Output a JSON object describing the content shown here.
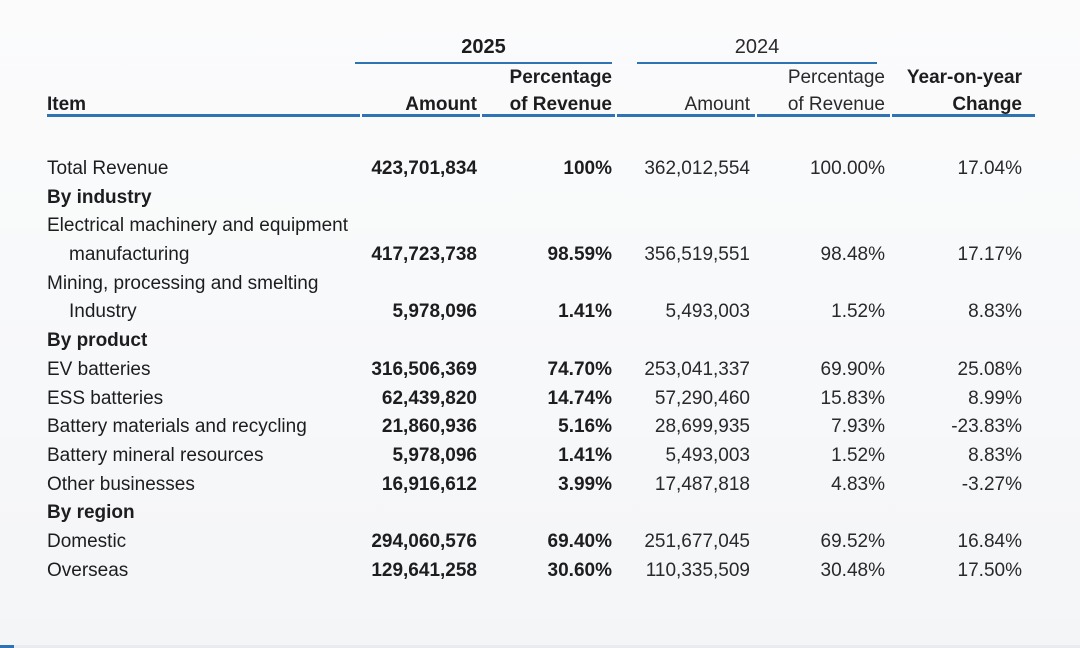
{
  "page": {
    "accent_blue": "#2e74b5",
    "text_color": "#1d1d1f",
    "background": "#f8f9fa"
  },
  "header": {
    "item_label": "Item",
    "groups": [
      {
        "year": "2025",
        "amount_label": "Amount",
        "pct_label": "Percentage\nof Revenue"
      },
      {
        "year": "2024",
        "amount_label": "Amount",
        "pct_label": "Percentage\nof Revenue"
      }
    ],
    "yoy_label": "Year-on-year\nChange"
  },
  "table": {
    "rows": [
      {
        "label": "Total Revenue",
        "a25": "423,701,834",
        "p25": "100%",
        "a24": "362,012,554",
        "p24": "100.00%",
        "yoy": "17.04%"
      },
      {
        "label": "By industry",
        "section": true,
        "a25": "",
        "p25": "",
        "a24": "",
        "p24": "",
        "yoy": ""
      },
      {
        "label": "Electrical machinery and equipment",
        "a25": "",
        "p25": "",
        "a24": "",
        "p24": "",
        "yoy": ""
      },
      {
        "label": "manufacturing",
        "indent": true,
        "a25": "417,723,738",
        "p25": "98.59%",
        "a24": "356,519,551",
        "p24": "98.48%",
        "yoy": "17.17%"
      },
      {
        "label": "Mining, processing and smelting",
        "a25": "",
        "p25": "",
        "a24": "",
        "p24": "",
        "yoy": ""
      },
      {
        "label": "Industry",
        "indent": true,
        "a25": "5,978,096",
        "p25": "1.41%",
        "a24": "5,493,003",
        "p24": "1.52%",
        "yoy": "8.83%"
      },
      {
        "label": "By product",
        "section": true,
        "a25": "",
        "p25": "",
        "a24": "",
        "p24": "",
        "yoy": ""
      },
      {
        "label": "EV batteries",
        "a25": "316,506,369",
        "p25": "74.70%",
        "a24": "253,041,337",
        "p24": "69.90%",
        "yoy": "25.08%"
      },
      {
        "label": "ESS batteries",
        "a25": "62,439,820",
        "p25": "14.74%",
        "a24": "57,290,460",
        "p24": "15.83%",
        "yoy": "8.99%"
      },
      {
        "label": "Battery materials and recycling",
        "a25": "21,860,936",
        "p25": "5.16%",
        "a24": "28,699,935",
        "p24": "7.93%",
        "yoy": "-23.83%"
      },
      {
        "label": "Battery mineral resources",
        "a25": "5,978,096",
        "p25": "1.41%",
        "a24": "5,493,003",
        "p24": "1.52%",
        "yoy": "8.83%"
      },
      {
        "label": "Other businesses",
        "a25": "16,916,612",
        "p25": "3.99%",
        "a24": "17,487,818",
        "p24": "4.83%",
        "yoy": "-3.27%"
      },
      {
        "label": "By region",
        "section": true,
        "a25": "",
        "p25": "",
        "a24": "",
        "p24": "",
        "yoy": ""
      },
      {
        "label": "Domestic",
        "a25": "294,060,576",
        "p25": "69.40%",
        "a24": "251,677,045",
        "p24": "69.52%",
        "yoy": "16.84%"
      },
      {
        "label": "Overseas",
        "a25": "129,641,258",
        "p25": "30.60%",
        "a24": "110,335,509",
        "p24": "30.48%",
        "yoy": "17.50%"
      }
    ]
  }
}
